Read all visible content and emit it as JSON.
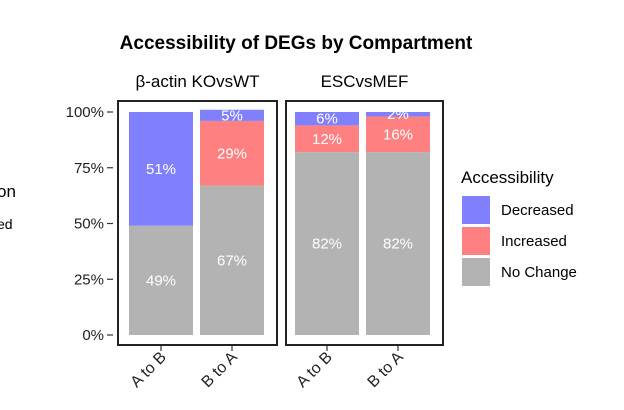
{
  "chart_data": {
    "type": "bar",
    "stacked": true,
    "title": "Accessibility of DEGs by Compartment",
    "y_ticks": [
      "0%",
      "25%",
      "50%",
      "75%",
      "100%"
    ],
    "y_tick_values": [
      0,
      25,
      50,
      75,
      100
    ],
    "ylim": [
      0,
      100
    ],
    "grid": false,
    "legend_position": "right",
    "legend_title": "Accessibility",
    "series": [
      {
        "name": "Decreased",
        "color": "#8080ff"
      },
      {
        "name": "Increased",
        "color": "#ff8080"
      },
      {
        "name": "No Change",
        "color": "#b3b3b3"
      }
    ],
    "panels": [
      {
        "title": "β-actin KOvsWT",
        "categories": [
          "A to B",
          "B to A"
        ],
        "values": {
          "No Change": [
            49,
            67
          ],
          "Increased": [
            0,
            29
          ],
          "Decreased": [
            51,
            5
          ]
        },
        "labels": {
          "No Change": [
            "49%",
            "67%"
          ],
          "Increased": [
            "",
            "29%"
          ],
          "Decreased": [
            "51%",
            "5%"
          ]
        }
      },
      {
        "title": "ESCvsMEF",
        "categories": [
          "A to B",
          "B to A"
        ],
        "values": {
          "No Change": [
            82,
            82
          ],
          "Increased": [
            12,
            16
          ],
          "Decreased": [
            6,
            2
          ]
        },
        "labels": {
          "No Change": [
            "82%",
            "82%"
          ],
          "Increased": [
            "12%",
            "16%"
          ],
          "Decreased": [
            "6%",
            "2%"
          ]
        }
      }
    ],
    "left_cut_fragments": [
      "on",
      "ed"
    ]
  }
}
